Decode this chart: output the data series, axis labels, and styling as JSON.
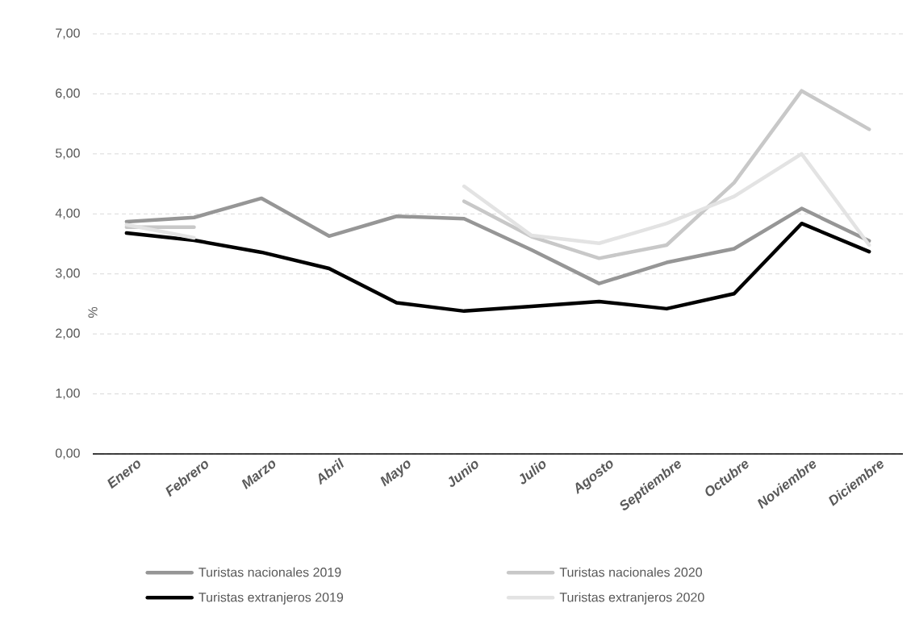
{
  "chart_data": {
    "type": "line",
    "ylabel": "%",
    "categories": [
      "Enero",
      "Febrero",
      "Marzo",
      "Abril",
      "Mayo",
      "Junio",
      "Julio",
      "Agosto",
      "Septiembre",
      "Octubre",
      "Noviembre",
      "Diciembre"
    ],
    "series": [
      {
        "name": "Turistas nacionales 2019",
        "color": "#969696",
        "values": [
          3.87,
          3.94,
          4.26,
          3.63,
          3.96,
          3.92,
          3.4,
          2.84,
          3.19,
          3.42,
          4.09,
          3.55
        ]
      },
      {
        "name": "Turistas nacionales 2020",
        "color": "#c8c8c8",
        "values": [
          3.78,
          3.78,
          null,
          null,
          null,
          4.21,
          3.62,
          3.26,
          3.48,
          4.52,
          6.05,
          5.41
        ]
      },
      {
        "name": "Turistas extranjeros  2019",
        "color": "#000000",
        "values": [
          3.68,
          3.56,
          3.36,
          3.09,
          2.52,
          2.38,
          2.46,
          2.54,
          2.42,
          2.67,
          3.84,
          3.37
        ]
      },
      {
        "name": "Turistas extranjeros  2020",
        "color": "#e3e3e3",
        "values": [
          3.82,
          3.6,
          null,
          null,
          null,
          4.46,
          3.64,
          3.51,
          3.84,
          4.29,
          5.0,
          3.48
        ]
      }
    ],
    "ylim": [
      0,
      7
    ],
    "yticks": [
      {
        "value": 0,
        "label": "0,00"
      },
      {
        "value": 1,
        "label": "1,00"
      },
      {
        "value": 2,
        "label": "2,00"
      },
      {
        "value": 3,
        "label": "3,00"
      },
      {
        "value": 4,
        "label": "4,00"
      },
      {
        "value": 5,
        "label": "5,00"
      },
      {
        "value": 6,
        "label": "6,00"
      },
      {
        "value": 7,
        "label": "7,00"
      }
    ],
    "grid": "y",
    "legend": "bottom",
    "line_style": "solid"
  }
}
